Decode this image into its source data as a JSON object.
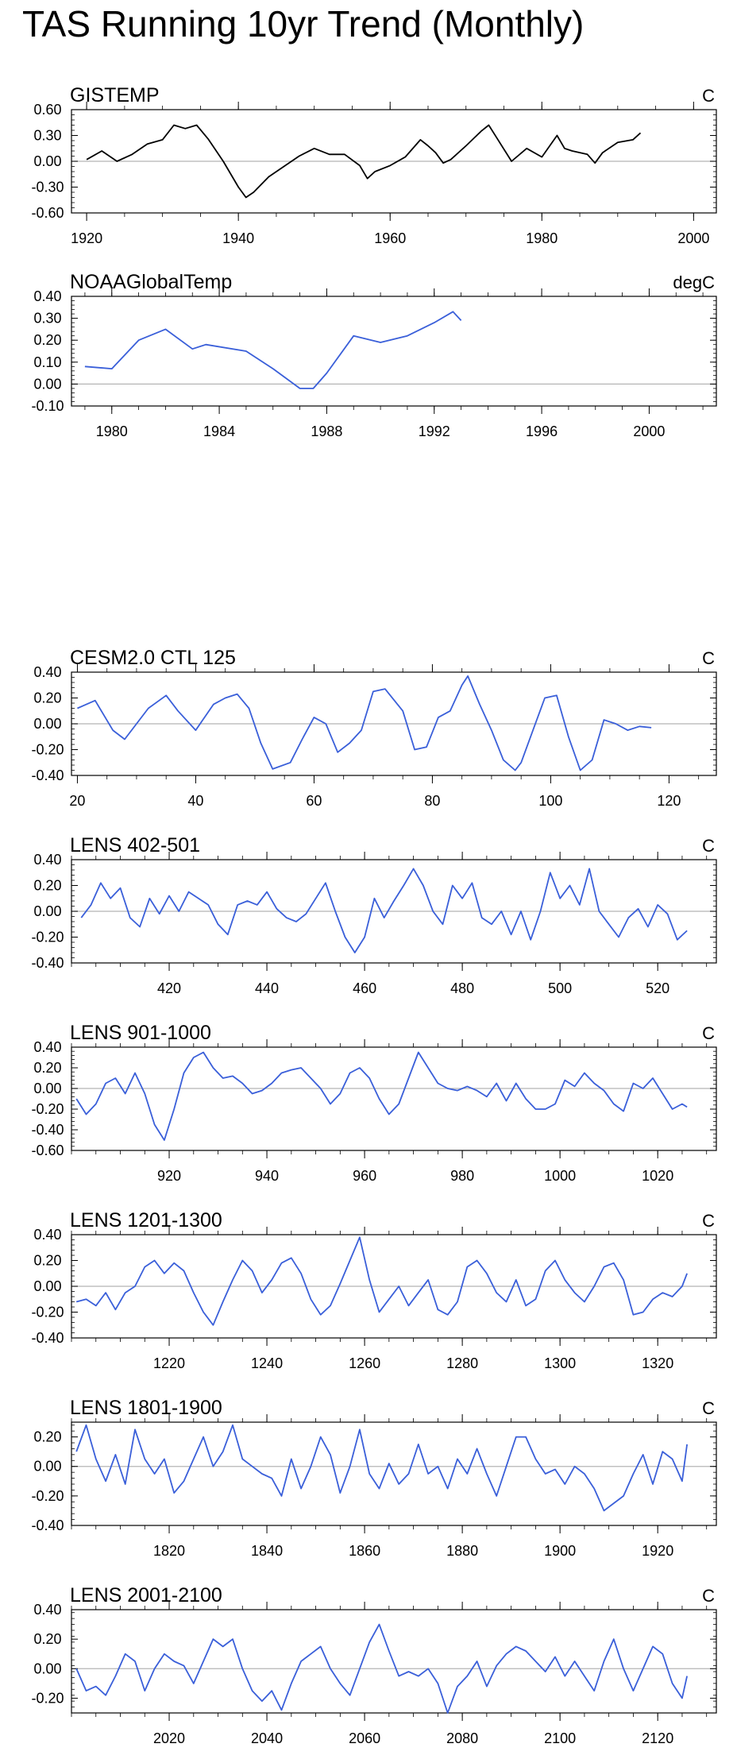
{
  "page_title": "TAS Running 10yr Trend (Monthly)",
  "colors": {
    "observed_line": "#000000",
    "model_line": "#3a5fd9",
    "zero_line": "#b5b5b5",
    "frame": "#000000"
  },
  "chart_data": [
    {
      "type": "line",
      "title": "GISTEMP",
      "units": "C",
      "line_color": "#000000",
      "xlim": [
        1918,
        2003
      ],
      "ylim": [
        -0.6,
        0.6
      ],
      "xticks": [
        1920,
        1940,
        1960,
        1980,
        2000
      ],
      "yticks": [
        -0.6,
        -0.3,
        0.0,
        0.3,
        0.6
      ],
      "ytick_labels": [
        "-0.60",
        "-0.30",
        "0.00",
        "0.30",
        "0.60"
      ],
      "x": [
        1920,
        1922,
        1924,
        1926,
        1928,
        1930,
        1931.5,
        1933,
        1934.5,
        1936,
        1938,
        1940,
        1941,
        1942,
        1944,
        1946,
        1948,
        1950,
        1952,
        1954,
        1956,
        1957,
        1958,
        1960,
        1962,
        1964,
        1965,
        1966,
        1967,
        1968,
        1970,
        1972,
        1973,
        1974,
        1976,
        1978,
        1980,
        1982,
        1983,
        1984,
        1986,
        1987,
        1988,
        1990,
        1992,
        1993
      ],
      "y": [
        0.02,
        0.12,
        0.0,
        0.08,
        0.2,
        0.25,
        0.42,
        0.38,
        0.42,
        0.26,
        0.0,
        -0.3,
        -0.42,
        -0.36,
        -0.18,
        -0.06,
        0.06,
        0.15,
        0.08,
        0.08,
        -0.05,
        -0.2,
        -0.12,
        -0.05,
        0.05,
        0.25,
        0.18,
        0.1,
        -0.02,
        0.02,
        0.18,
        0.35,
        0.42,
        0.28,
        0.0,
        0.15,
        0.05,
        0.3,
        0.15,
        0.12,
        0.08,
        -0.02,
        0.1,
        0.22,
        0.25,
        0.33
      ]
    },
    {
      "type": "line",
      "title": "NOAAGlobalTemp",
      "units": "degC",
      "line_color": "#3a5fd9",
      "xlim": [
        1978.5,
        2002.5
      ],
      "ylim": [
        -0.1,
        0.4
      ],
      "xticks": [
        1980,
        1984,
        1988,
        1992,
        1996,
        2000
      ],
      "yticks": [
        -0.1,
        0.0,
        0.1,
        0.2,
        0.3,
        0.4
      ],
      "ytick_labels": [
        "-0.10",
        "0.00",
        "0.10",
        "0.20",
        "0.30",
        "0.40"
      ],
      "x": [
        1979,
        1980,
        1981,
        1982,
        1983,
        1983.5,
        1985,
        1986,
        1987,
        1987.5,
        1988,
        1989,
        1990,
        1991,
        1992,
        1992.7,
        1993
      ],
      "y": [
        0.08,
        0.07,
        0.2,
        0.25,
        0.16,
        0.18,
        0.15,
        0.07,
        -0.02,
        -0.02,
        0.05,
        0.22,
        0.19,
        0.22,
        0.28,
        0.33,
        0.29
      ]
    },
    {
      "type": "line",
      "title": "CESM2.0 CTL 125",
      "units": "C",
      "line_color": "#3a5fd9",
      "xlim": [
        19,
        128
      ],
      "ylim": [
        -0.4,
        0.4
      ],
      "xticks": [
        20,
        40,
        60,
        80,
        100,
        120
      ],
      "yticks": [
        -0.4,
        -0.2,
        0.0,
        0.2,
        0.4
      ],
      "ytick_labels": [
        "-0.40",
        "-0.20",
        "0.00",
        "0.20",
        "0.40"
      ],
      "x": [
        20,
        23,
        26,
        28,
        30,
        32,
        35,
        37,
        40,
        43,
        45,
        47,
        49,
        51,
        53,
        56,
        58,
        60,
        62,
        64,
        66,
        68,
        70,
        72,
        75,
        77,
        79,
        81,
        83,
        85,
        86,
        88,
        90,
        92,
        94,
        95,
        97,
        99,
        101,
        103,
        105,
        107,
        109,
        111,
        113,
        115,
        117
      ],
      "y": [
        0.12,
        0.18,
        -0.05,
        -0.12,
        0.0,
        0.12,
        0.22,
        0.1,
        -0.05,
        0.15,
        0.2,
        0.23,
        0.12,
        -0.15,
        -0.35,
        -0.3,
        -0.12,
        0.05,
        0.0,
        -0.22,
        -0.15,
        -0.05,
        0.25,
        0.27,
        0.1,
        -0.2,
        -0.18,
        0.05,
        0.1,
        0.3,
        0.37,
        0.15,
        -0.05,
        -0.28,
        -0.36,
        -0.3,
        -0.05,
        0.2,
        0.22,
        -0.1,
        -0.36,
        -0.28,
        0.03,
        0.0,
        -0.05,
        -0.02,
        -0.03
      ]
    },
    {
      "type": "line",
      "title": "LENS 402-501",
      "units": "C",
      "line_color": "#3a5fd9",
      "xlim": [
        400,
        532
      ],
      "ylim": [
        -0.4,
        0.4
      ],
      "xticks": [
        420,
        440,
        460,
        480,
        500,
        520
      ],
      "yticks": [
        -0.4,
        -0.2,
        0.0,
        0.2,
        0.4
      ],
      "ytick_labels": [
        "-0.40",
        "-0.20",
        "0.00",
        "0.20",
        "0.40"
      ],
      "x": [
        402,
        404,
        406,
        408,
        410,
        412,
        414,
        416,
        418,
        420,
        422,
        424,
        426,
        428,
        430,
        432,
        434,
        436,
        438,
        440,
        442,
        444,
        446,
        448,
        450,
        452,
        454,
        456,
        458,
        460,
        462,
        464,
        466,
        468,
        470,
        472,
        474,
        476,
        478,
        480,
        482,
        484,
        486,
        488,
        490,
        492,
        494,
        496,
        498,
        500,
        502,
        504,
        506,
        508,
        510,
        512,
        514,
        516,
        518,
        520,
        522,
        524,
        526
      ],
      "y": [
        -0.05,
        0.05,
        0.22,
        0.1,
        0.18,
        -0.05,
        -0.12,
        0.1,
        -0.02,
        0.12,
        0.0,
        0.15,
        0.1,
        0.05,
        -0.1,
        -0.18,
        0.05,
        0.08,
        0.05,
        0.15,
        0.02,
        -0.05,
        -0.08,
        -0.02,
        0.1,
        0.22,
        0.0,
        -0.2,
        -0.32,
        -0.2,
        0.1,
        -0.05,
        0.08,
        0.2,
        0.33,
        0.2,
        0.0,
        -0.1,
        0.2,
        0.1,
        0.22,
        -0.05,
        -0.1,
        0.0,
        -0.18,
        0.0,
        -0.22,
        0.0,
        0.3,
        0.1,
        0.2,
        0.05,
        0.33,
        0.0,
        -0.1,
        -0.2,
        -0.05,
        0.02,
        -0.12,
        0.05,
        -0.02,
        -0.22,
        -0.15
      ]
    },
    {
      "type": "line",
      "title": "LENS 901-1000",
      "units": "C",
      "line_color": "#3a5fd9",
      "xlim": [
        900,
        1032
      ],
      "ylim": [
        -0.6,
        0.4
      ],
      "xticks": [
        920,
        940,
        960,
        980,
        1000,
        1020
      ],
      "yticks": [
        -0.6,
        -0.4,
        -0.2,
        0.0,
        0.2,
        0.4
      ],
      "ytick_labels": [
        "-0.60",
        "-0.40",
        "-0.20",
        "0.00",
        "0.20",
        "0.40"
      ],
      "x": [
        901,
        903,
        905,
        907,
        909,
        911,
        913,
        915,
        917,
        919,
        921,
        923,
        925,
        927,
        929,
        931,
        933,
        935,
        937,
        939,
        941,
        943,
        945,
        947,
        949,
        951,
        953,
        955,
        957,
        959,
        961,
        963,
        965,
        967,
        969,
        971,
        973,
        975,
        977,
        979,
        981,
        983,
        985,
        987,
        989,
        991,
        993,
        995,
        997,
        999,
        1001,
        1003,
        1005,
        1007,
        1009,
        1011,
        1013,
        1015,
        1017,
        1019,
        1021,
        1023,
        1025,
        1026
      ],
      "y": [
        -0.1,
        -0.25,
        -0.15,
        0.05,
        0.1,
        -0.05,
        0.15,
        -0.05,
        -0.35,
        -0.5,
        -0.2,
        0.15,
        0.3,
        0.35,
        0.2,
        0.1,
        0.12,
        0.05,
        -0.05,
        -0.02,
        0.05,
        0.15,
        0.18,
        0.2,
        0.1,
        0.0,
        -0.15,
        -0.05,
        0.15,
        0.2,
        0.1,
        -0.1,
        -0.25,
        -0.15,
        0.1,
        0.35,
        0.2,
        0.05,
        0.0,
        -0.02,
        0.02,
        -0.02,
        -0.08,
        0.05,
        -0.12,
        0.05,
        -0.1,
        -0.2,
        -0.2,
        -0.15,
        0.08,
        0.02,
        0.15,
        0.05,
        -0.02,
        -0.15,
        -0.22,
        0.05,
        0.0,
        0.1,
        -0.05,
        -0.2,
        -0.15,
        -0.18
      ]
    },
    {
      "type": "line",
      "title": "LENS 1201-1300",
      "units": "C",
      "line_color": "#3a5fd9",
      "xlim": [
        1200,
        1332
      ],
      "ylim": [
        -0.4,
        0.4
      ],
      "xticks": [
        1220,
        1240,
        1260,
        1280,
        1300,
        1320
      ],
      "yticks": [
        -0.4,
        -0.2,
        0.0,
        0.2,
        0.4
      ],
      "ytick_labels": [
        "-0.40",
        "-0.20",
        "0.00",
        "0.20",
        "0.40"
      ],
      "x": [
        1201,
        1203,
        1205,
        1207,
        1209,
        1211,
        1213,
        1215,
        1217,
        1219,
        1221,
        1223,
        1225,
        1227,
        1229,
        1231,
        1233,
        1235,
        1237,
        1239,
        1241,
        1243,
        1245,
        1247,
        1249,
        1251,
        1253,
        1255,
        1257,
        1259,
        1261,
        1263,
        1265,
        1267,
        1269,
        1271,
        1273,
        1275,
        1277,
        1279,
        1281,
        1283,
        1285,
        1287,
        1289,
        1291,
        1293,
        1295,
        1297,
        1299,
        1301,
        1303,
        1305,
        1307,
        1309,
        1311,
        1313,
        1315,
        1317,
        1319,
        1321,
        1323,
        1325,
        1326
      ],
      "y": [
        -0.12,
        -0.1,
        -0.15,
        -0.05,
        -0.18,
        -0.05,
        0.0,
        0.15,
        0.2,
        0.1,
        0.18,
        0.12,
        -0.05,
        -0.2,
        -0.3,
        -0.12,
        0.05,
        0.2,
        0.12,
        -0.05,
        0.05,
        0.18,
        0.22,
        0.1,
        -0.1,
        -0.22,
        -0.15,
        0.02,
        0.2,
        0.38,
        0.05,
        -0.2,
        -0.1,
        0.0,
        -0.15,
        -0.05,
        0.05,
        -0.18,
        -0.22,
        -0.12,
        0.15,
        0.2,
        0.1,
        -0.05,
        -0.12,
        0.05,
        -0.15,
        -0.1,
        0.12,
        0.2,
        0.05,
        -0.05,
        -0.12,
        0.0,
        0.15,
        0.18,
        0.05,
        -0.22,
        -0.2,
        -0.1,
        -0.05,
        -0.08,
        0.0,
        0.1
      ]
    },
    {
      "type": "line",
      "title": "LENS 1801-1900",
      "units": "C",
      "line_color": "#3a5fd9",
      "xlim": [
        1800,
        1932
      ],
      "ylim": [
        -0.4,
        0.3
      ],
      "xticks": [
        1820,
        1840,
        1860,
        1880,
        1900,
        1920
      ],
      "yticks": [
        -0.4,
        -0.2,
        0.0,
        0.2
      ],
      "ytick_labels": [
        "-0.40",
        "-0.20",
        "0.00",
        "0.20"
      ],
      "x": [
        1801,
        1803,
        1805,
        1807,
        1809,
        1811,
        1813,
        1815,
        1817,
        1819,
        1821,
        1823,
        1825,
        1827,
        1829,
        1831,
        1833,
        1835,
        1837,
        1839,
        1841,
        1843,
        1845,
        1847,
        1849,
        1851,
        1853,
        1855,
        1857,
        1859,
        1861,
        1863,
        1865,
        1867,
        1869,
        1871,
        1873,
        1875,
        1877,
        1879,
        1881,
        1883,
        1885,
        1887,
        1889,
        1891,
        1893,
        1895,
        1897,
        1899,
        1901,
        1903,
        1905,
        1907,
        1909,
        1911,
        1913,
        1915,
        1917,
        1919,
        1921,
        1923,
        1925,
        1926
      ],
      "y": [
        0.1,
        0.28,
        0.05,
        -0.1,
        0.08,
        -0.12,
        0.25,
        0.05,
        -0.05,
        0.05,
        -0.18,
        -0.1,
        0.05,
        0.2,
        0.0,
        0.1,
        0.28,
        0.05,
        0.0,
        -0.05,
        -0.08,
        -0.2,
        0.05,
        -0.15,
        0.0,
        0.2,
        0.08,
        -0.18,
        0.0,
        0.25,
        -0.05,
        -0.15,
        0.02,
        -0.12,
        -0.05,
        0.15,
        -0.05,
        0.0,
        -0.15,
        0.05,
        -0.05,
        0.12,
        -0.05,
        -0.2,
        0.0,
        0.2,
        0.2,
        0.05,
        -0.05,
        -0.02,
        -0.12,
        0.0,
        -0.05,
        -0.15,
        -0.3,
        -0.25,
        -0.2,
        -0.05,
        0.08,
        -0.12,
        0.1,
        0.05,
        -0.1,
        0.15
      ]
    },
    {
      "type": "line",
      "title": "LENS 2001-2100",
      "units": "C",
      "line_color": "#3a5fd9",
      "xlim": [
        2000,
        2132
      ],
      "ylim": [
        -0.3,
        0.4
      ],
      "xticks": [
        2020,
        2040,
        2060,
        2080,
        2100,
        2120
      ],
      "yticks": [
        -0.2,
        0.0,
        0.2,
        0.4
      ],
      "ytick_labels": [
        "-0.20",
        "0.00",
        "0.20",
        "0.40"
      ],
      "x": [
        2001,
        2003,
        2005,
        2007,
        2009,
        2011,
        2013,
        2015,
        2017,
        2019,
        2021,
        2023,
        2025,
        2027,
        2029,
        2031,
        2033,
        2035,
        2037,
        2039,
        2041,
        2043,
        2045,
        2047,
        2049,
        2051,
        2053,
        2055,
        2057,
        2059,
        2061,
        2063,
        2065,
        2067,
        2069,
        2071,
        2073,
        2075,
        2077,
        2079,
        2081,
        2083,
        2085,
        2087,
        2089,
        2091,
        2093,
        2095,
        2097,
        2099,
        2101,
        2103,
        2105,
        2107,
        2109,
        2111,
        2113,
        2115,
        2117,
        2119,
        2121,
        2123,
        2125,
        2126
      ],
      "y": [
        0.0,
        -0.15,
        -0.12,
        -0.18,
        -0.05,
        0.1,
        0.05,
        -0.15,
        0.0,
        0.1,
        0.05,
        0.02,
        -0.1,
        0.05,
        0.2,
        0.15,
        0.2,
        0.0,
        -0.15,
        -0.22,
        -0.15,
        -0.28,
        -0.1,
        0.05,
        0.1,
        0.15,
        0.0,
        -0.1,
        -0.18,
        0.0,
        0.18,
        0.3,
        0.12,
        -0.05,
        -0.02,
        -0.05,
        0.0,
        -0.1,
        -0.3,
        -0.12,
        -0.05,
        0.05,
        -0.12,
        0.02,
        0.1,
        0.15,
        0.12,
        0.05,
        -0.02,
        0.08,
        -0.05,
        0.05,
        -0.05,
        -0.15,
        0.05,
        0.2,
        0.0,
        -0.15,
        0.0,
        0.15,
        0.1,
        -0.1,
        -0.2,
        -0.05
      ]
    }
  ]
}
